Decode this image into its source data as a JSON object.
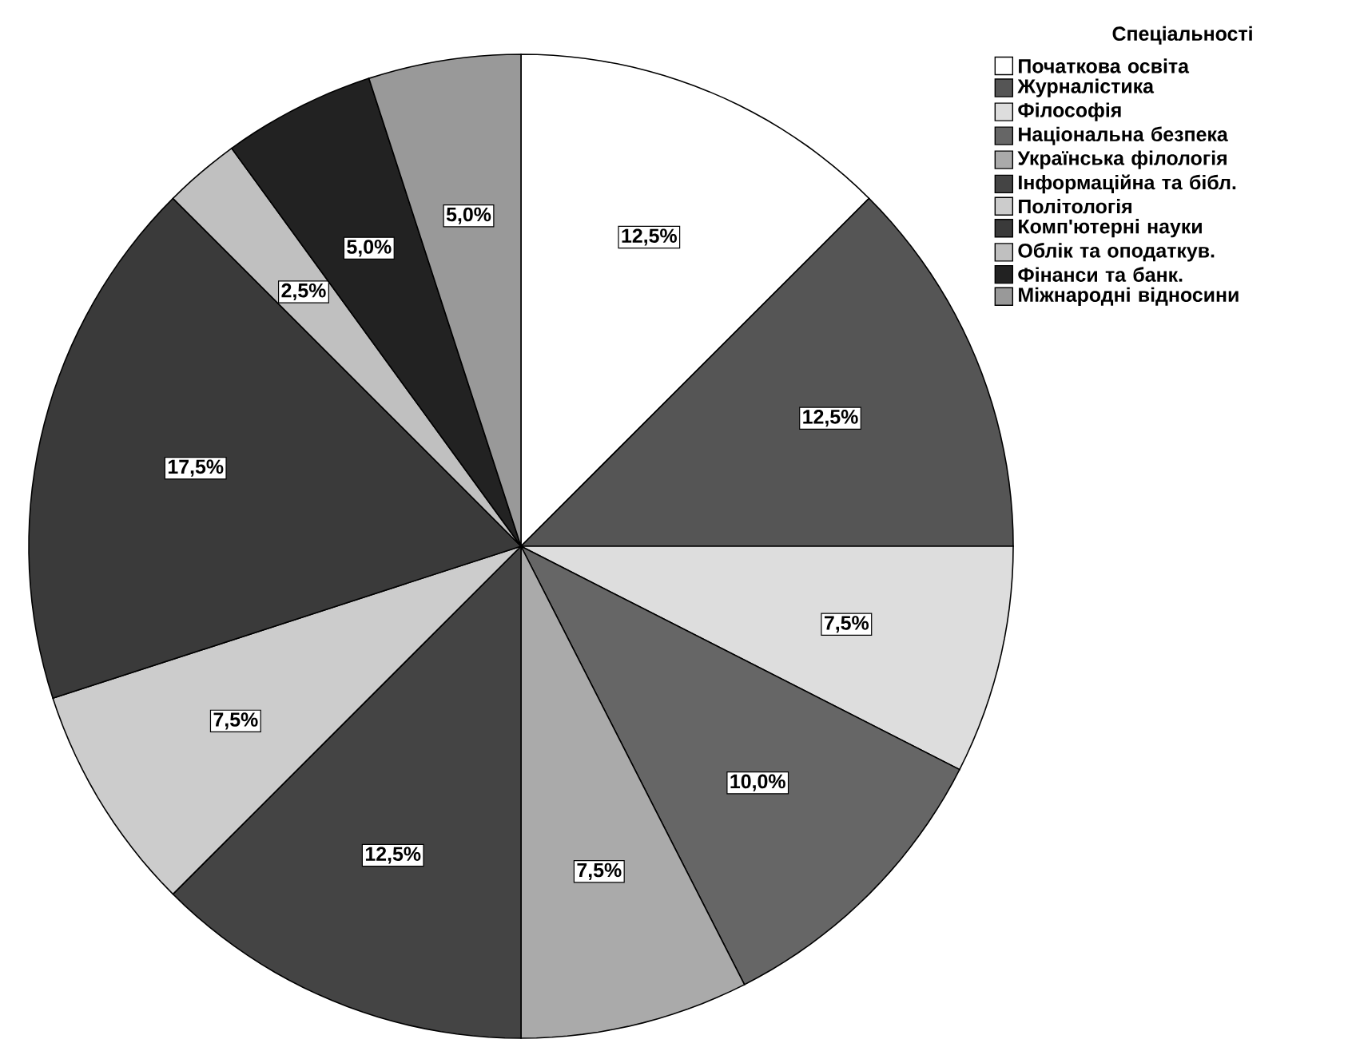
{
  "chart_data": {
    "type": "pie",
    "legend_title": "Спеціальності",
    "categories": [
      "Початкова освіта",
      "Журналістика",
      "Філософія",
      "Національна безпека",
      "Українська філологія",
      "Інформаційна та бібл.",
      "Політологія",
      "Комп'ютерні науки",
      "Облік та оподаткув.",
      "Фінанси та банк.",
      "Міжнародні відносини"
    ],
    "values": [
      12.5,
      12.5,
      7.5,
      10.0,
      7.5,
      12.5,
      7.5,
      17.5,
      2.5,
      5.0,
      5.0
    ],
    "value_labels": [
      "12,5%",
      "12,5%",
      "7,5%",
      "10,0%",
      "7,5%",
      "12,5%",
      "7,5%",
      "17,5%",
      "2,5%",
      "5,0%",
      "5,0%"
    ],
    "colors": [
      "#ffffff",
      "#555555",
      "#dddddd",
      "#666666",
      "#aaaaaa",
      "#444444",
      "#cccccc",
      "#3a3a3a",
      "#c0c0c0",
      "#222222",
      "#999999"
    ],
    "legend": "right"
  }
}
